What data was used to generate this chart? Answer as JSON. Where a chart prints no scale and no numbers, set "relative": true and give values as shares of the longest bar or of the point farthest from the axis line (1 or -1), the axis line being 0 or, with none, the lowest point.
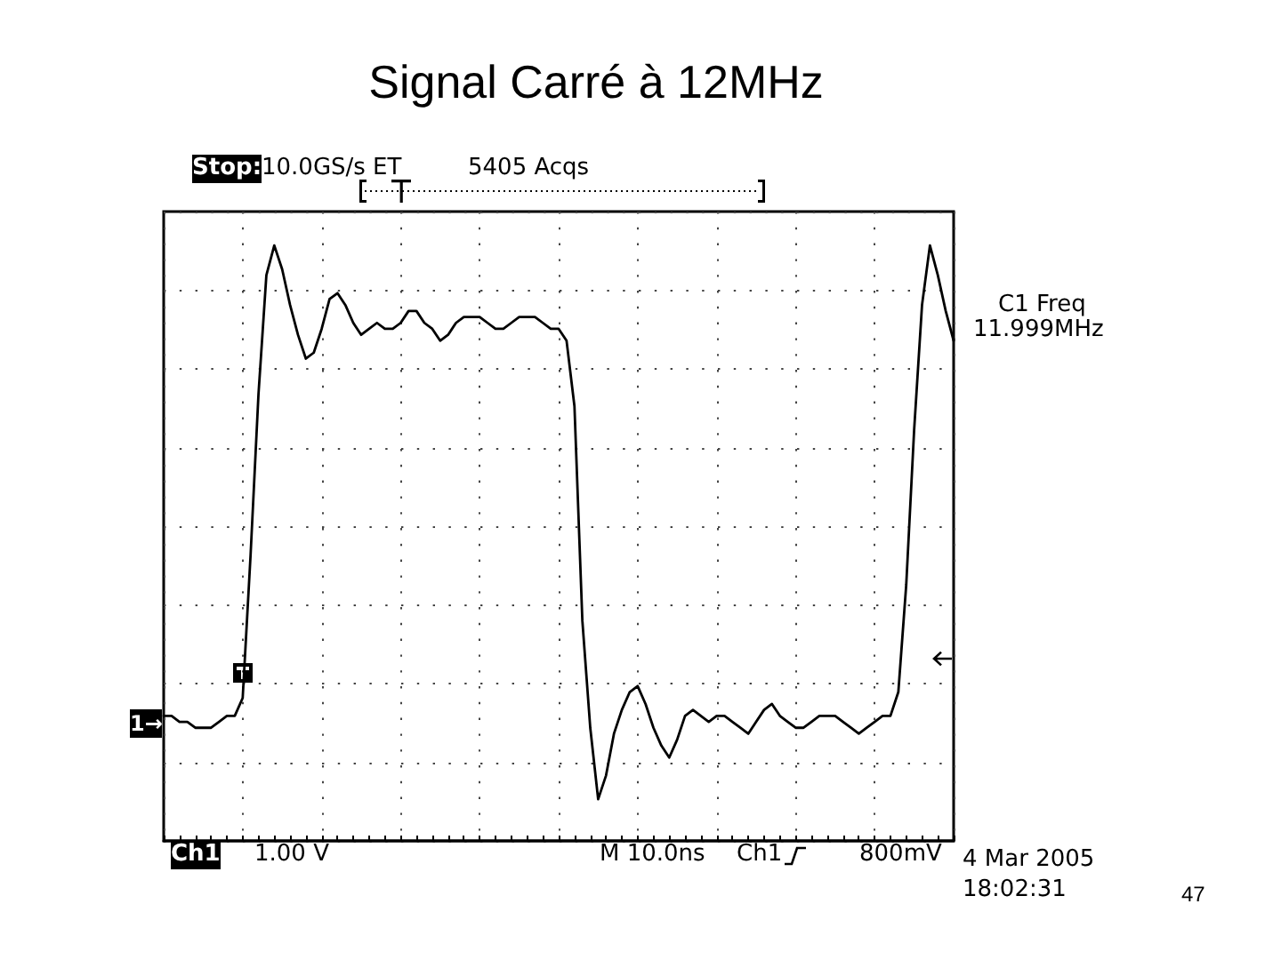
{
  "chart_data": {
    "type": "line",
    "title": "Signal Carré à 12MHz",
    "categories": [
      null,
      null,
      null,
      null,
      null,
      null,
      null,
      null,
      null,
      null,
      null,
      null,
      null,
      null,
      null,
      null,
      null,
      null,
      null,
      null,
      null,
      null,
      null,
      null,
      null,
      null,
      null,
      null,
      null,
      null,
      null,
      null,
      null,
      null,
      null,
      null,
      null,
      null,
      null,
      null,
      null,
      null,
      null,
      null,
      null,
      null,
      null,
      null,
      null,
      null,
      null,
      null,
      null,
      null,
      null,
      null,
      null,
      null,
      null,
      null,
      null,
      null,
      null,
      null,
      null,
      null,
      null,
      null,
      null,
      null,
      null,
      null,
      null,
      null,
      null,
      null,
      null,
      null,
      null,
      null,
      null,
      null,
      null,
      null,
      null,
      null,
      null,
      null,
      null,
      null,
      null,
      null,
      null,
      null,
      null,
      null,
      null,
      null,
      null,
      null,
      null
    ],
    "series": [
      {
        "color": "#000000",
        "values": [
          0.21,
          0.21,
          0.2,
          0.2,
          0.19,
          0.19,
          0.19,
          0.2,
          0.21,
          0.21,
          0.24,
          0.48,
          0.75,
          0.95,
          1,
          0.96,
          0.9,
          0.85,
          0.81,
          0.82,
          0.86,
          0.91,
          0.92,
          0.9,
          0.87,
          0.85,
          0.86,
          0.87,
          0.86,
          0.86,
          0.87,
          0.89,
          0.89,
          0.87,
          0.86,
          0.84,
          0.85,
          0.87,
          0.88,
          0.88,
          0.88,
          0.87,
          0.86,
          0.86,
          0.87,
          0.88,
          0.88,
          0.88,
          0.87,
          0.86,
          0.86,
          0.84,
          0.73,
          0.37,
          0.19,
          0.07,
          0.11,
          0.18,
          0.22,
          0.25,
          0.26,
          0.23,
          0.19,
          0.16,
          0.14,
          0.17,
          0.21,
          0.22,
          0.21,
          0.2,
          0.21,
          0.21,
          0.2,
          0.19,
          0.18,
          0.2,
          0.22,
          0.23,
          0.21,
          0.2,
          0.19,
          0.19,
          0.2,
          0.21,
          0.21,
          0.21,
          0.2,
          0.19,
          0.18,
          0.19,
          0.2,
          0.21,
          0.21,
          0.25,
          0.43,
          0.69,
          0.9,
          1,
          0.95,
          0.89,
          0.84
        ]
      }
    ],
    "relative": true,
    "grid": true,
    "marker": "none",
    "line_style": "solid",
    "annotations": [
      "Stop:",
      "10.0GS/s ET",
      "5405 Acqs",
      "C1 Freq",
      "11.999MHz",
      "Ch1",
      "1.00 V",
      "M 10.0ns",
      "Ch1",
      "800mV",
      "4 Mar 2005",
      "18:02:31",
      "47",
      "1→"
    ]
  }
}
